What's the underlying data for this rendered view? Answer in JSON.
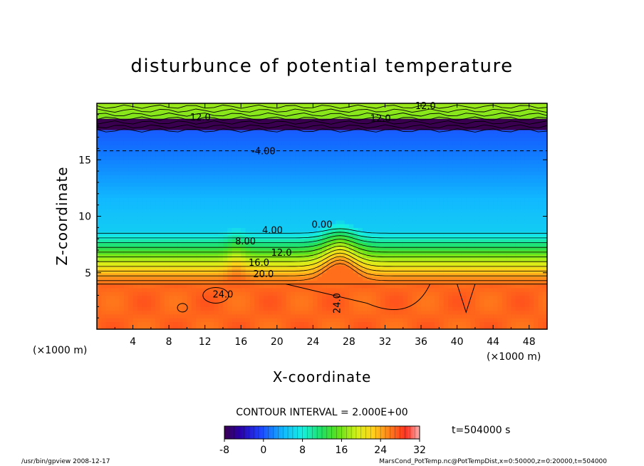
{
  "chart_data": {
    "type": "heatmap",
    "title": "disturbunce of potential temperature",
    "xlabel": "X-coordinate",
    "ylabel": "Z-coordinate",
    "x_unit_left": "(×1000 m)",
    "x_unit_right": "(×1000 m)",
    "xlim": [
      0,
      50
    ],
    "ylim": [
      0,
      20
    ],
    "xticks": [
      "4",
      "8",
      "12",
      "16",
      "20",
      "24",
      "28",
      "32",
      "36",
      "40",
      "44",
      "48"
    ],
    "xtick_values": [
      4,
      8,
      12,
      16,
      20,
      24,
      28,
      32,
      36,
      40,
      44,
      48
    ],
    "yticks": [
      "5",
      "10",
      "15"
    ],
    "ytick_values": [
      5,
      10,
      15
    ],
    "colorbar": {
      "min": -8,
      "max": 32,
      "tick_labels": [
        "-8",
        "0",
        "8",
        "16",
        "24",
        "32"
      ],
      "tick_values": [
        -8,
        0,
        8,
        16,
        24,
        32
      ]
    },
    "contour_interval_text": "CONTOUR INTERVAL = 2.000E+00",
    "time_text": "t=504000 s",
    "contour_labels": [
      {
        "text": "12.0",
        "x": 36.5,
        "z": 19.5
      },
      {
        "text": "12.0",
        "x": 11.5,
        "z": 18.5
      },
      {
        "text": "12.0",
        "x": 31.5,
        "z": 18.4
      },
      {
        "text": "-4.00",
        "x": 18.5,
        "z": 15.5
      },
      {
        "text": "4.00",
        "x": 19.5,
        "z": 8.5
      },
      {
        "text": "0.00",
        "x": 25.0,
        "z": 9.0
      },
      {
        "text": "8.00",
        "x": 16.5,
        "z": 7.5
      },
      {
        "text": "12.0",
        "x": 20.5,
        "z": 6.5
      },
      {
        "text": "16.0",
        "x": 18.0,
        "z": 5.6
      },
      {
        "text": "20.0",
        "x": 18.5,
        "z": 4.6
      },
      {
        "text": "24.0",
        "x": 14.0,
        "z": 2.8
      },
      {
        "text": "24.0",
        "x": 27.0,
        "z": 2.3
      }
    ],
    "field_description_levels": [
      {
        "z_range": [
          0,
          4
        ],
        "value": 24
      },
      {
        "z_range": [
          4,
          8.5
        ],
        "value": "24 to 4"
      },
      {
        "z_range": [
          8.5,
          17.5
        ],
        "value": -2
      },
      {
        "z_range": [
          17.5,
          18.5
        ],
        "value": -8
      },
      {
        "z_range": [
          18.5,
          20
        ],
        "value": 12
      }
    ]
  },
  "footer": {
    "left": "/usr/bin/gpview   2008-12-17",
    "right": "MarsCond_PotTemp.nc@PotTempDist,x=0:50000,z=0:20000,t=504000"
  },
  "colors": {
    "background": "#ffffff",
    "frame": "#000000"
  }
}
